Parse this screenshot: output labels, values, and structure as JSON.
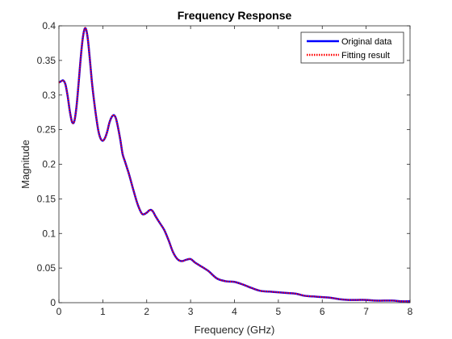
{
  "chart_data": {
    "type": "line",
    "title": "Frequency Response",
    "xlabel": "Frequency (GHz)",
    "ylabel": "Magnitude",
    "xlim": [
      0,
      8
    ],
    "ylim": [
      0,
      0.4
    ],
    "xticks": [
      0,
      1,
      2,
      3,
      4,
      5,
      6,
      7,
      8
    ],
    "yticks": [
      0,
      0.05,
      0.1,
      0.15,
      0.2,
      0.25,
      0.3,
      0.35,
      0.4
    ],
    "xtick_labels": [
      "0",
      "1",
      "2",
      "3",
      "4",
      "5",
      "6",
      "7",
      "8"
    ],
    "ytick_labels": [
      "0",
      "0.05",
      "0.1",
      "0.15",
      "0.2",
      "0.25",
      "0.3",
      "0.35",
      "0.4"
    ],
    "grid": false,
    "legend_position": "top-right",
    "series": [
      {
        "name": "Original data",
        "color": "#0000ff",
        "style": "solid",
        "x": [
          0,
          0.05,
          0.1,
          0.15,
          0.2,
          0.25,
          0.3,
          0.35,
          0.4,
          0.45,
          0.5,
          0.55,
          0.6,
          0.65,
          0.7,
          0.75,
          0.8,
          0.85,
          0.9,
          0.95,
          1.0,
          1.05,
          1.1,
          1.15,
          1.2,
          1.25,
          1.3,
          1.35,
          1.4,
          1.45,
          1.5,
          1.55,
          1.6,
          1.7,
          1.8,
          1.9,
          2.0,
          2.05,
          2.1,
          2.15,
          2.2,
          2.3,
          2.4,
          2.5,
          2.6,
          2.7,
          2.8,
          2.9,
          3.0,
          3.1,
          3.2,
          3.4,
          3.6,
          3.8,
          4.0,
          4.2,
          4.4,
          4.6,
          4.8,
          5.0,
          5.2,
          5.4,
          5.6,
          5.8,
          6.0,
          6.2,
          6.4,
          6.6,
          6.8,
          7.0,
          7.2,
          7.4,
          7.6,
          7.8,
          8.0
        ],
        "y": [
          0.318,
          0.32,
          0.321,
          0.315,
          0.298,
          0.276,
          0.261,
          0.262,
          0.283,
          0.318,
          0.356,
          0.385,
          0.397,
          0.385,
          0.355,
          0.32,
          0.292,
          0.268,
          0.248,
          0.237,
          0.234,
          0.238,
          0.247,
          0.26,
          0.268,
          0.271,
          0.266,
          0.252,
          0.235,
          0.215,
          0.205,
          0.195,
          0.185,
          0.162,
          0.141,
          0.128,
          0.13,
          0.133,
          0.134,
          0.131,
          0.125,
          0.115,
          0.105,
          0.09,
          0.073,
          0.063,
          0.06,
          0.062,
          0.063,
          0.058,
          0.054,
          0.046,
          0.035,
          0.031,
          0.03,
          0.026,
          0.021,
          0.017,
          0.016,
          0.015,
          0.014,
          0.013,
          0.01,
          0.009,
          0.008,
          0.007,
          0.005,
          0.004,
          0.004,
          0.004,
          0.003,
          0.003,
          0.003,
          0.002,
          0.002
        ]
      },
      {
        "name": "Fitting result",
        "color": "#ff0000",
        "style": "dotted",
        "x": [
          0,
          0.05,
          0.1,
          0.15,
          0.2,
          0.25,
          0.3,
          0.35,
          0.4,
          0.45,
          0.5,
          0.55,
          0.6,
          0.65,
          0.7,
          0.75,
          0.8,
          0.85,
          0.9,
          0.95,
          1.0,
          1.05,
          1.1,
          1.15,
          1.2,
          1.25,
          1.3,
          1.35,
          1.4,
          1.45,
          1.5,
          1.55,
          1.6,
          1.7,
          1.8,
          1.9,
          2.0,
          2.05,
          2.1,
          2.15,
          2.2,
          2.3,
          2.4,
          2.5,
          2.6,
          2.7,
          2.8,
          2.9,
          3.0,
          3.1,
          3.2,
          3.4,
          3.6,
          3.8,
          4.0,
          4.2,
          4.4,
          4.6,
          4.8,
          5.0,
          5.2,
          5.4,
          5.6,
          5.8,
          6.0,
          6.2,
          6.4,
          6.6,
          6.8,
          7.0,
          7.2,
          7.4,
          7.6,
          7.8,
          8.0
        ],
        "y": [
          0.318,
          0.32,
          0.321,
          0.315,
          0.298,
          0.276,
          0.261,
          0.262,
          0.283,
          0.318,
          0.356,
          0.385,
          0.397,
          0.385,
          0.355,
          0.32,
          0.292,
          0.268,
          0.248,
          0.237,
          0.234,
          0.238,
          0.247,
          0.26,
          0.268,
          0.271,
          0.266,
          0.252,
          0.235,
          0.215,
          0.205,
          0.195,
          0.185,
          0.162,
          0.141,
          0.128,
          0.13,
          0.133,
          0.134,
          0.131,
          0.125,
          0.115,
          0.105,
          0.09,
          0.073,
          0.063,
          0.06,
          0.062,
          0.063,
          0.058,
          0.054,
          0.046,
          0.035,
          0.031,
          0.03,
          0.026,
          0.021,
          0.017,
          0.016,
          0.015,
          0.014,
          0.013,
          0.01,
          0.009,
          0.008,
          0.007,
          0.005,
          0.004,
          0.004,
          0.004,
          0.003,
          0.003,
          0.003,
          0.002,
          0.002
        ]
      }
    ]
  }
}
